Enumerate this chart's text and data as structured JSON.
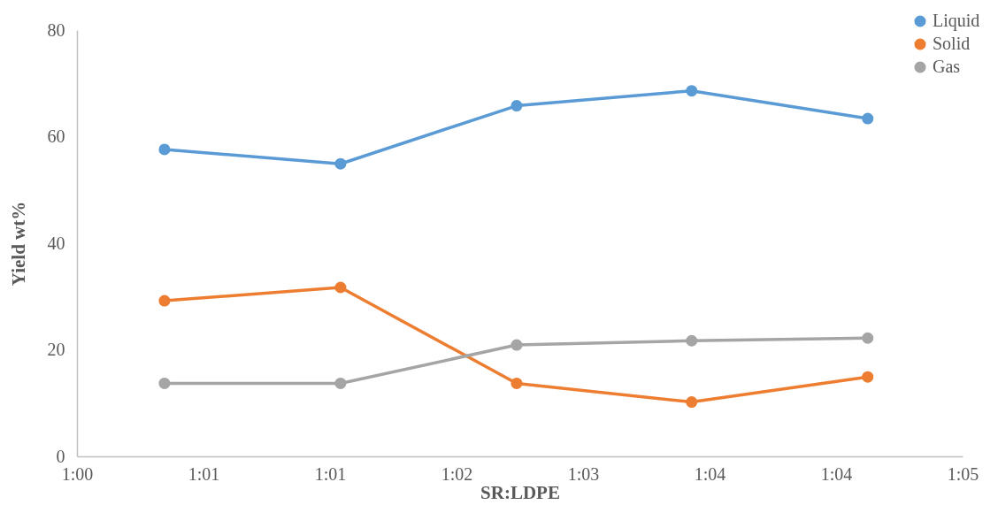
{
  "chart_data": {
    "type": "line",
    "xlabel": "SR:LDPE",
    "ylabel": "Yield wt%",
    "x": [
      1.0083,
      1.025,
      1.0417,
      1.0583,
      1.075
    ],
    "series": [
      {
        "name": "Liquid",
        "color": "#5b9bd5",
        "values": [
          57.6,
          54.9,
          65.8,
          68.6,
          63.4
        ]
      },
      {
        "name": "Solid",
        "color": "#ed7d31",
        "values": [
          29.2,
          31.7,
          13.7,
          10.2,
          14.9
        ]
      },
      {
        "name": "Gas",
        "color": "#a5a5a5",
        "values": [
          13.7,
          13.7,
          20.9,
          21.7,
          22.2
        ]
      }
    ],
    "xlim": [
      1,
      1.084
    ],
    "xticks": [
      {
        "value": 1,
        "label": "1:00"
      },
      {
        "value": 1.012,
        "label": "1:01"
      },
      {
        "value": 1.024,
        "label": "1:01"
      },
      {
        "value": 1.036,
        "label": "1:02"
      },
      {
        "value": 1.048,
        "label": "1:03"
      },
      {
        "value": 1.06,
        "label": "1:04"
      },
      {
        "value": 1.072,
        "label": "1:04"
      },
      {
        "value": 1.084,
        "label": "1:05"
      }
    ],
    "ylim": [
      0,
      80
    ],
    "yticks": [
      0,
      20,
      40,
      60,
      80
    ],
    "grid": false,
    "legend": "top right",
    "marker": "circle",
    "line_style": "solid"
  }
}
